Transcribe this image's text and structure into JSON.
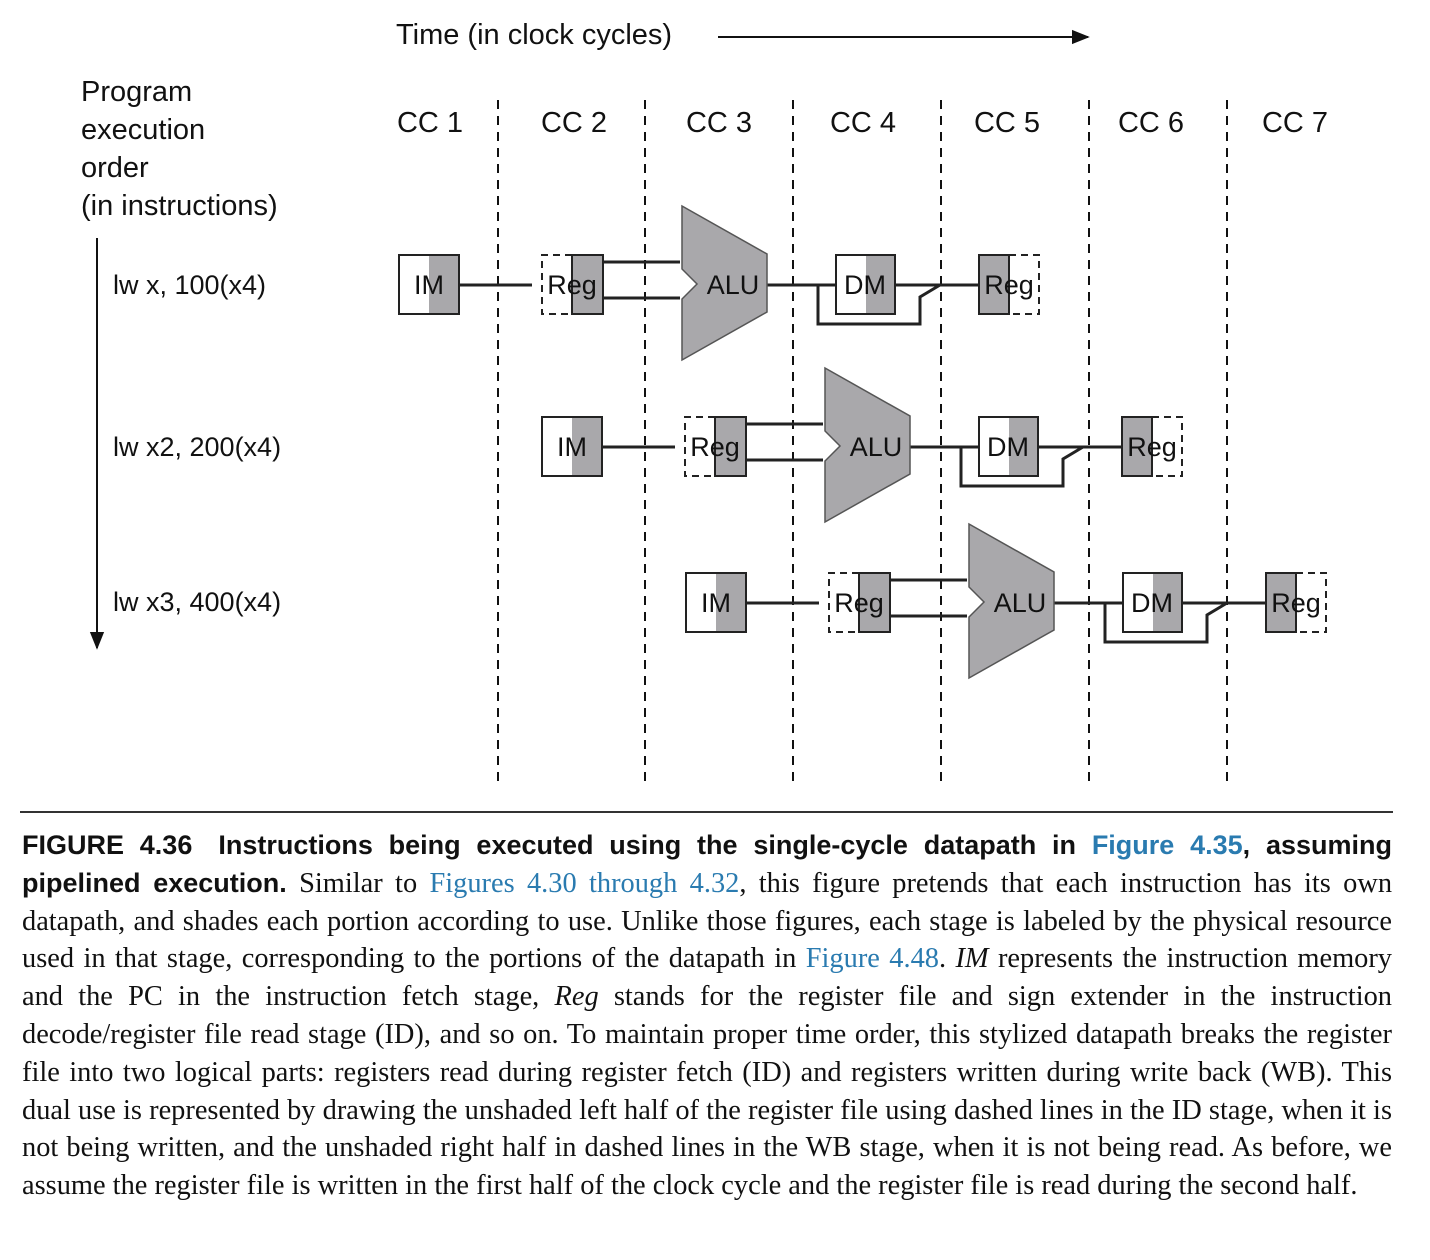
{
  "diagram": {
    "time_label": "Time (in clock cycles)",
    "order_label": [
      "Program",
      "execution",
      "order",
      "(in instructions)"
    ],
    "cycles": [
      "CC 1",
      "CC 2",
      "CC 3",
      "CC 4",
      "CC 5",
      "CC 6",
      "CC 7"
    ],
    "instructions": [
      "lw x, 100(x4)",
      "lw x2, 200(x4)",
      "lw x3, 400(x4)"
    ],
    "stage_labels": {
      "im": "IM",
      "reg": "Reg",
      "alu": "ALU",
      "dm": "DM"
    },
    "colors": {
      "shade": "#a9a8ab",
      "line": "#222222"
    }
  },
  "caption": {
    "figure_number": "FIGURE 4.36",
    "title_bold": "Instructions being executed using the single-cycle datapath in",
    "title_ref": "Figure 4.35",
    "title_bold_end": ", assuming pipelined execution.",
    "body_1": " Similar to ",
    "ref_1": "Figures 4.30 through 4.32",
    "body_2": ", this figure pretends that each instruction has its own datapath, and shades each portion according to use. Unlike those figures, each stage is labeled by the physical resource used in that stage, corresponding to the portions of the datapath in ",
    "ref_2": "Figure 4.48",
    "body_3": ". ",
    "em_im": "IM",
    "body_4": " represents the instruction memory and the PC in the instruction fetch stage, ",
    "em_reg": "Reg",
    "body_5": " stands for the register file and sign extender in the instruction decode/register file read stage (ID), and so on. To maintain proper time order, this stylized datapath breaks the register file into two logical parts: registers read during register fetch (ID) and registers written during write back (WB). This dual use is represented by drawing the unshaded left half of the register file using dashed lines in the ID stage, when it is not being written, and the unshaded right half in dashed lines in the WB stage, when it is not being read. As before, we assume the register file is written in the first half of the clock cycle and the register file is read during the second half."
  }
}
